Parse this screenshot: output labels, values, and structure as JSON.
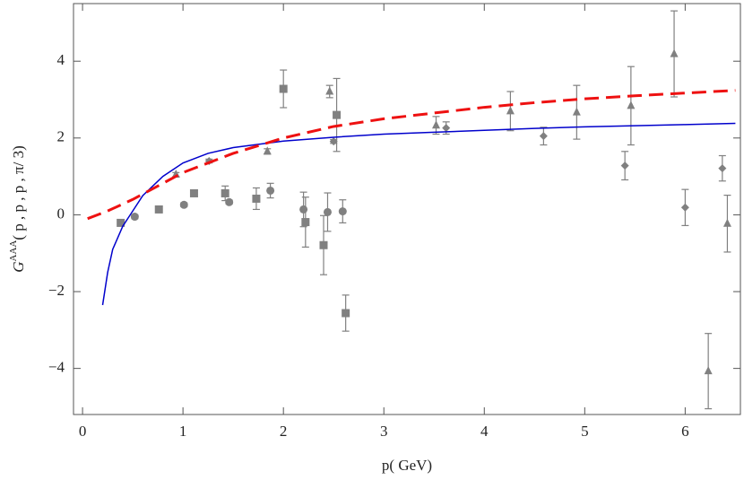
{
  "chart_data": {
    "type": "scatter",
    "xlabel": "p( GeV)",
    "ylabel": {
      "base": "G",
      "sup": "AAA",
      "args": "( p , p , p , π/ 3)"
    },
    "xlim": [
      -0.09,
      6.55
    ],
    "ylim": [
      -5.2,
      5.5
    ],
    "xticks": [
      0,
      1,
      2,
      3,
      4,
      5,
      6
    ],
    "yticks": [
      {
        "value": -4,
        "label": "−4"
      },
      {
        "value": -2,
        "label": "−2"
      },
      0,
      2,
      4
    ],
    "series": [
      {
        "type": "errorbar",
        "marker": "square",
        "color": "#808080",
        "x": [
          0.38,
          0.76,
          1.11,
          1.42,
          1.73,
          2.0,
          2.22,
          2.4,
          2.53,
          2.62
        ],
        "values": [
          -0.21,
          0.14,
          0.56,
          0.56,
          0.42,
          3.28,
          -0.19,
          -0.79,
          2.6,
          -2.56
        ],
        "errors": [
          0.05,
          0.05,
          0.05,
          0.19,
          0.28,
          0.49,
          0.65,
          0.77,
          0.95,
          0.47
        ]
      },
      {
        "type": "errorbar",
        "marker": "circle",
        "color": "#808080",
        "x": [
          0.52,
          1.01,
          1.46,
          1.87,
          2.2,
          2.44,
          2.59
        ],
        "values": [
          -0.05,
          0.26,
          0.33,
          0.63,
          0.14,
          0.07,
          0.09
        ],
        "errors": [
          0.05,
          0.05,
          0.05,
          0.19,
          0.45,
          0.5,
          0.3
        ]
      },
      {
        "type": "errorbar",
        "marker": "diamond",
        "color": "#808080",
        "x": [
          1.26,
          2.5,
          3.62,
          4.59,
          5.4,
          6.0,
          6.37
        ],
        "values": [
          1.4,
          1.91,
          2.26,
          2.05,
          1.28,
          0.19,
          1.21
        ],
        "errors": [
          0.05,
          0.05,
          0.16,
          0.23,
          0.37,
          0.47,
          0.33
        ]
      },
      {
        "type": "errorbar",
        "marker": "triangle",
        "color": "#808080",
        "x": [
          0.93,
          1.84,
          2.46,
          3.52,
          4.26,
          4.92,
          5.46,
          5.89,
          6.23,
          6.42
        ],
        "values": [
          1.05,
          1.65,
          3.21,
          2.33,
          2.7,
          2.67,
          2.84,
          4.19,
          -4.07,
          -0.23
        ],
        "errors": [
          0.05,
          0.07,
          0.16,
          0.23,
          0.51,
          0.7,
          1.02,
          1.12,
          0.98,
          0.74
        ]
      },
      {
        "type": "line",
        "style": "solid",
        "color": "#0000cc",
        "x": [
          0.2,
          0.25,
          0.3,
          0.4,
          0.5,
          0.6,
          0.8,
          1,
          1.25,
          1.5,
          2,
          2.5,
          3,
          3.5,
          4,
          4.5,
          5,
          5.5,
          6,
          6.5
        ],
        "values": [
          -2.35,
          -1.5,
          -0.9,
          -0.3,
          0.1,
          0.5,
          1.0,
          1.35,
          1.6,
          1.75,
          1.92,
          2.02,
          2.1,
          2.15,
          2.2,
          2.25,
          2.29,
          2.32,
          2.35,
          2.38
        ]
      },
      {
        "type": "line",
        "style": "dashed",
        "color": "#ee1111",
        "x": [
          0.05,
          0.25,
          0.5,
          0.75,
          1,
          1.5,
          2,
          2.5,
          3,
          3.5,
          4,
          4.5,
          5,
          5.5,
          6,
          6.5
        ],
        "values": [
          -0.1,
          0.1,
          0.4,
          0.75,
          1.1,
          1.6,
          2.0,
          2.3,
          2.5,
          2.65,
          2.8,
          2.92,
          3.02,
          3.1,
          3.17,
          3.24
        ]
      }
    ]
  }
}
